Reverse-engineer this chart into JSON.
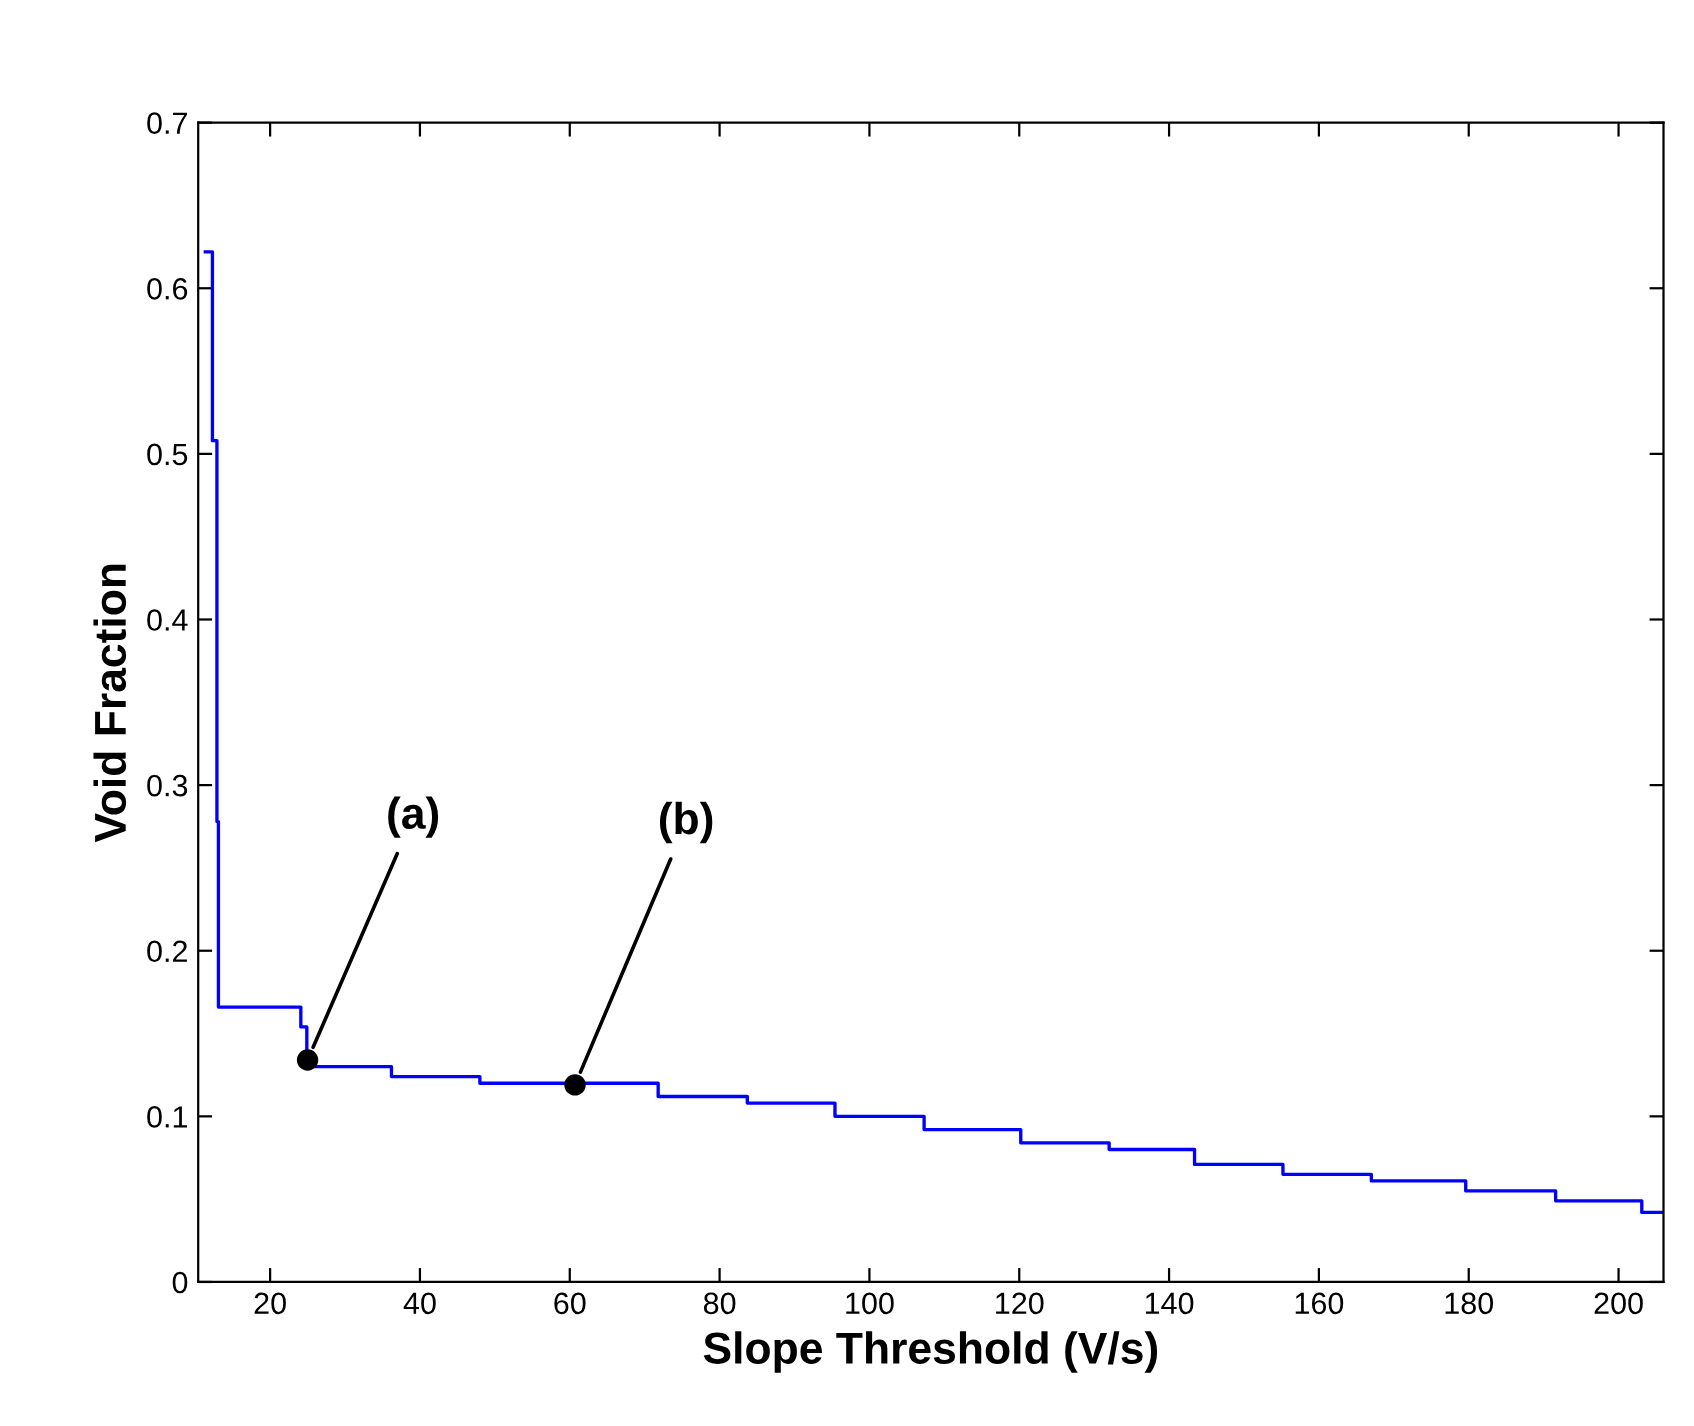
{
  "chart_data": {
    "type": "step",
    "xlabel": "Slope Threshold (V/s)",
    "ylabel": "Void Fraction",
    "xlim": [
      10.4,
      206
    ],
    "ylim": [
      0,
      0.7
    ],
    "xticks": [
      20,
      40,
      60,
      80,
      100,
      120,
      140,
      160,
      180,
      200
    ],
    "yticks": [
      0,
      0.1,
      0.2,
      0.3,
      0.4,
      0.5,
      0.6,
      0.7
    ],
    "grid": false,
    "legend": false,
    "series": [
      {
        "color": "#0000ff",
        "line_style": "solid",
        "marker": "none",
        "x": [
          11.35,
          12.3,
          12.9,
          13.1,
          24.1,
          24.9,
          36.2,
          48.0,
          71.8,
          83.7,
          95.4,
          107.3,
          120.2,
          132.0,
          143.4,
          155.2,
          167.0,
          179.6,
          191.6,
          203.1,
          206.0
        ],
        "values": [
          0.622,
          0.508,
          0.278,
          0.166,
          0.154,
          0.13,
          0.124,
          0.12,
          0.112,
          0.108,
          0.1,
          0.092,
          0.084,
          0.08,
          0.071,
          0.065,
          0.061,
          0.055,
          0.049,
          0.042,
          0.042
        ]
      },
      {
        "type": "scatter",
        "color": "#000000",
        "marker": "circle",
        "x": [
          25.0,
          60.7
        ],
        "values": [
          0.134,
          0.119
        ]
      }
    ],
    "annotations": [
      {
        "text": "(a)",
        "x": 25.0,
        "y": 0.134
      },
      {
        "text": "(b)",
        "x": 60.7,
        "y": 0.119
      }
    ]
  }
}
